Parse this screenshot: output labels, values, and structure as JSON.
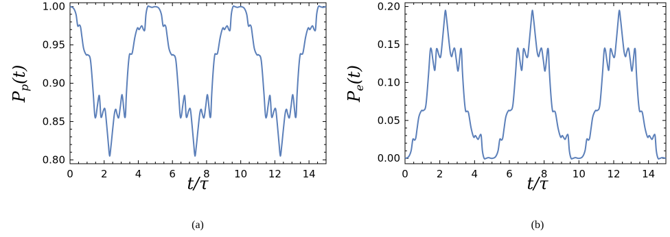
{
  "chart_data": [
    {
      "type": "line",
      "caption": "(a)",
      "xlabel": "t/τ",
      "ylabel": "P_p(t)",
      "xlim": [
        0,
        15
      ],
      "ylim": [
        0.795,
        1.005
      ],
      "x_ticks": [
        "0",
        "2",
        "4",
        "6",
        "8",
        "10",
        "12",
        "14"
      ],
      "y_ticks": [
        "0.80",
        "0.85",
        "0.90",
        "0.95",
        "1.00"
      ],
      "color": "#5b7fb9",
      "series": [
        {
          "x": [
            0,
            0.2,
            0.35,
            0.45,
            0.55,
            0.62,
            0.7,
            0.8,
            0.95,
            1.05,
            1.2,
            1.35,
            1.45,
            1.52,
            1.6,
            1.7,
            1.75,
            1.8,
            1.85,
            1.95,
            2.05,
            2.15,
            2.25,
            2.32,
            2.4,
            2.5,
            2.6,
            2.68,
            2.75,
            2.85,
            2.95,
            3.05,
            3.15,
            3.2,
            3.25,
            3.3,
            3.4,
            3.48,
            3.55,
            3.65,
            3.8,
            3.95,
            4.05,
            4.2,
            4.3,
            4.38,
            4.45,
            4.55,
            4.65,
            4.8,
            5,
            5.2,
            5.35,
            5.45,
            5.55,
            5.62,
            5.7,
            5.8,
            5.95,
            6.05,
            6.2,
            6.35,
            6.45,
            6.52,
            6.6,
            6.7,
            6.75,
            6.8,
            6.85,
            6.95,
            7.05,
            7.15,
            7.25,
            7.32,
            7.4,
            7.5,
            7.6,
            7.68,
            7.75,
            7.85,
            7.95,
            8.05,
            8.15,
            8.2,
            8.25,
            8.3,
            8.4,
            8.48,
            8.55,
            8.65,
            8.8,
            8.95,
            9.05,
            9.2,
            9.3,
            9.38,
            9.45,
            9.55,
            9.65,
            9.8,
            10,
            10.2,
            10.35,
            10.45,
            10.55,
            10.62,
            10.7,
            10.8,
            10.95,
            11.05,
            11.2,
            11.35,
            11.45,
            11.52,
            11.6,
            11.7,
            11.75,
            11.8,
            11.85,
            11.95,
            12.05,
            12.15,
            12.25,
            12.32,
            12.4,
            12.5,
            12.6,
            12.68,
            12.75,
            12.85,
            12.95,
            13.05,
            13.15,
            13.2,
            13.25,
            13.3,
            13.4,
            13.48,
            13.55,
            13.65,
            13.8,
            13.95,
            14.05,
            14.2,
            14.3,
            14.38,
            14.45,
            14.55,
            14.65,
            14.8,
            15
          ],
          "y": [
            1.0,
            0.998,
            0.99,
            0.975,
            0.976,
            0.973,
            0.96,
            0.945,
            0.937,
            0.937,
            0.93,
            0.89,
            0.858,
            0.857,
            0.87,
            0.884,
            0.876,
            0.858,
            0.856,
            0.864,
            0.866,
            0.845,
            0.82,
            0.805,
            0.818,
            0.84,
            0.86,
            0.866,
            0.86,
            0.855,
            0.87,
            0.885,
            0.866,
            0.856,
            0.859,
            0.885,
            0.92,
            0.937,
            0.938,
            0.94,
            0.96,
            0.972,
            0.97,
            0.975,
            0.97,
            0.97,
            0.99,
            1.0,
            1.0,
            0.999,
            1.0,
            0.998,
            0.99,
            0.975,
            0.976,
            0.973,
            0.96,
            0.945,
            0.937,
            0.937,
            0.93,
            0.89,
            0.858,
            0.857,
            0.87,
            0.884,
            0.876,
            0.858,
            0.856,
            0.864,
            0.866,
            0.845,
            0.82,
            0.805,
            0.818,
            0.84,
            0.86,
            0.866,
            0.86,
            0.855,
            0.87,
            0.885,
            0.866,
            0.856,
            0.859,
            0.885,
            0.92,
            0.937,
            0.938,
            0.94,
            0.96,
            0.972,
            0.97,
            0.975,
            0.97,
            0.97,
            0.99,
            1.0,
            1.0,
            0.999,
            1.0,
            0.998,
            0.99,
            0.975,
            0.976,
            0.973,
            0.96,
            0.945,
            0.937,
            0.937,
            0.93,
            0.89,
            0.858,
            0.857,
            0.87,
            0.884,
            0.876,
            0.858,
            0.856,
            0.864,
            0.866,
            0.845,
            0.82,
            0.805,
            0.818,
            0.84,
            0.86,
            0.866,
            0.86,
            0.855,
            0.87,
            0.885,
            0.866,
            0.856,
            0.859,
            0.885,
            0.92,
            0.937,
            0.938,
            0.94,
            0.96,
            0.972,
            0.97,
            0.975,
            0.97,
            0.97,
            0.99,
            1.0,
            1.0,
            0.999,
            1.0
          ]
        }
      ]
    },
    {
      "type": "line",
      "caption": "(b)",
      "xlabel": "t/τ",
      "ylabel": "P_e(t)",
      "xlim": [
        0,
        15
      ],
      "ylim": [
        -0.007,
        0.205
      ],
      "x_ticks": [
        "0",
        "2",
        "4",
        "6",
        "8",
        "10",
        "12",
        "14"
      ],
      "y_ticks": [
        "0.00",
        "0.05",
        "0.10",
        "0.15",
        "0.20"
      ],
      "color": "#5b7fb9",
      "series": [
        {
          "x": [
            0,
            0.2,
            0.35,
            0.45,
            0.55,
            0.62,
            0.7,
            0.8,
            0.95,
            1.05,
            1.2,
            1.35,
            1.45,
            1.52,
            1.6,
            1.7,
            1.75,
            1.8,
            1.85,
            1.95,
            2.05,
            2.15,
            2.25,
            2.32,
            2.4,
            2.5,
            2.6,
            2.68,
            2.75,
            2.85,
            2.95,
            3.05,
            3.15,
            3.2,
            3.25,
            3.3,
            3.4,
            3.48,
            3.55,
            3.65,
            3.8,
            3.95,
            4.05,
            4.2,
            4.3,
            4.38,
            4.45,
            4.55,
            4.65,
            4.8,
            5,
            5.2,
            5.35,
            5.45,
            5.55,
            5.62,
            5.7,
            5.8,
            5.95,
            6.05,
            6.2,
            6.35,
            6.45,
            6.52,
            6.6,
            6.7,
            6.75,
            6.8,
            6.85,
            6.95,
            7.05,
            7.15,
            7.25,
            7.32,
            7.4,
            7.5,
            7.6,
            7.68,
            7.75,
            7.85,
            7.95,
            8.05,
            8.15,
            8.2,
            8.25,
            8.3,
            8.4,
            8.48,
            8.55,
            8.65,
            8.8,
            8.95,
            9.05,
            9.2,
            9.3,
            9.38,
            9.45,
            9.55,
            9.65,
            9.8,
            10,
            10.2,
            10.35,
            10.45,
            10.55,
            10.62,
            10.7,
            10.8,
            10.95,
            11.05,
            11.2,
            11.35,
            11.45,
            11.52,
            11.6,
            11.7,
            11.75,
            11.8,
            11.85,
            11.95,
            12.05,
            12.15,
            12.25,
            12.32,
            12.4,
            12.5,
            12.6,
            12.68,
            12.75,
            12.85,
            12.95,
            13.05,
            13.15,
            13.2,
            13.25,
            13.3,
            13.4,
            13.48,
            13.55,
            13.65,
            13.8,
            13.95,
            14.05,
            14.2,
            14.3,
            14.38,
            14.45,
            14.55,
            14.65,
            14.8,
            15
          ],
          "y": [
            0.0,
            0.002,
            0.01,
            0.025,
            0.024,
            0.027,
            0.04,
            0.055,
            0.063,
            0.063,
            0.07,
            0.11,
            0.142,
            0.143,
            0.13,
            0.116,
            0.124,
            0.142,
            0.144,
            0.136,
            0.134,
            0.155,
            0.18,
            0.195,
            0.182,
            0.16,
            0.14,
            0.134,
            0.14,
            0.145,
            0.13,
            0.115,
            0.134,
            0.144,
            0.141,
            0.115,
            0.08,
            0.063,
            0.062,
            0.06,
            0.04,
            0.028,
            0.03,
            0.025,
            0.03,
            0.03,
            0.01,
            0.0,
            0.0,
            0.001,
            0.0,
            0.002,
            0.01,
            0.025,
            0.024,
            0.027,
            0.04,
            0.055,
            0.063,
            0.063,
            0.07,
            0.11,
            0.142,
            0.143,
            0.13,
            0.116,
            0.124,
            0.142,
            0.144,
            0.136,
            0.134,
            0.155,
            0.18,
            0.195,
            0.182,
            0.16,
            0.14,
            0.134,
            0.14,
            0.145,
            0.13,
            0.115,
            0.134,
            0.144,
            0.141,
            0.115,
            0.08,
            0.063,
            0.062,
            0.06,
            0.04,
            0.028,
            0.03,
            0.025,
            0.03,
            0.03,
            0.01,
            0.0,
            0.0,
            0.001,
            0.0,
            0.002,
            0.01,
            0.025,
            0.024,
            0.027,
            0.04,
            0.055,
            0.063,
            0.063,
            0.07,
            0.11,
            0.142,
            0.143,
            0.13,
            0.116,
            0.124,
            0.142,
            0.144,
            0.136,
            0.134,
            0.155,
            0.18,
            0.195,
            0.182,
            0.16,
            0.14,
            0.134,
            0.14,
            0.145,
            0.13,
            0.115,
            0.134,
            0.144,
            0.141,
            0.115,
            0.08,
            0.063,
            0.062,
            0.06,
            0.04,
            0.028,
            0.03,
            0.025,
            0.03,
            0.03,
            0.01,
            0.0,
            0.0,
            0.001,
            0.0
          ]
        }
      ]
    }
  ]
}
